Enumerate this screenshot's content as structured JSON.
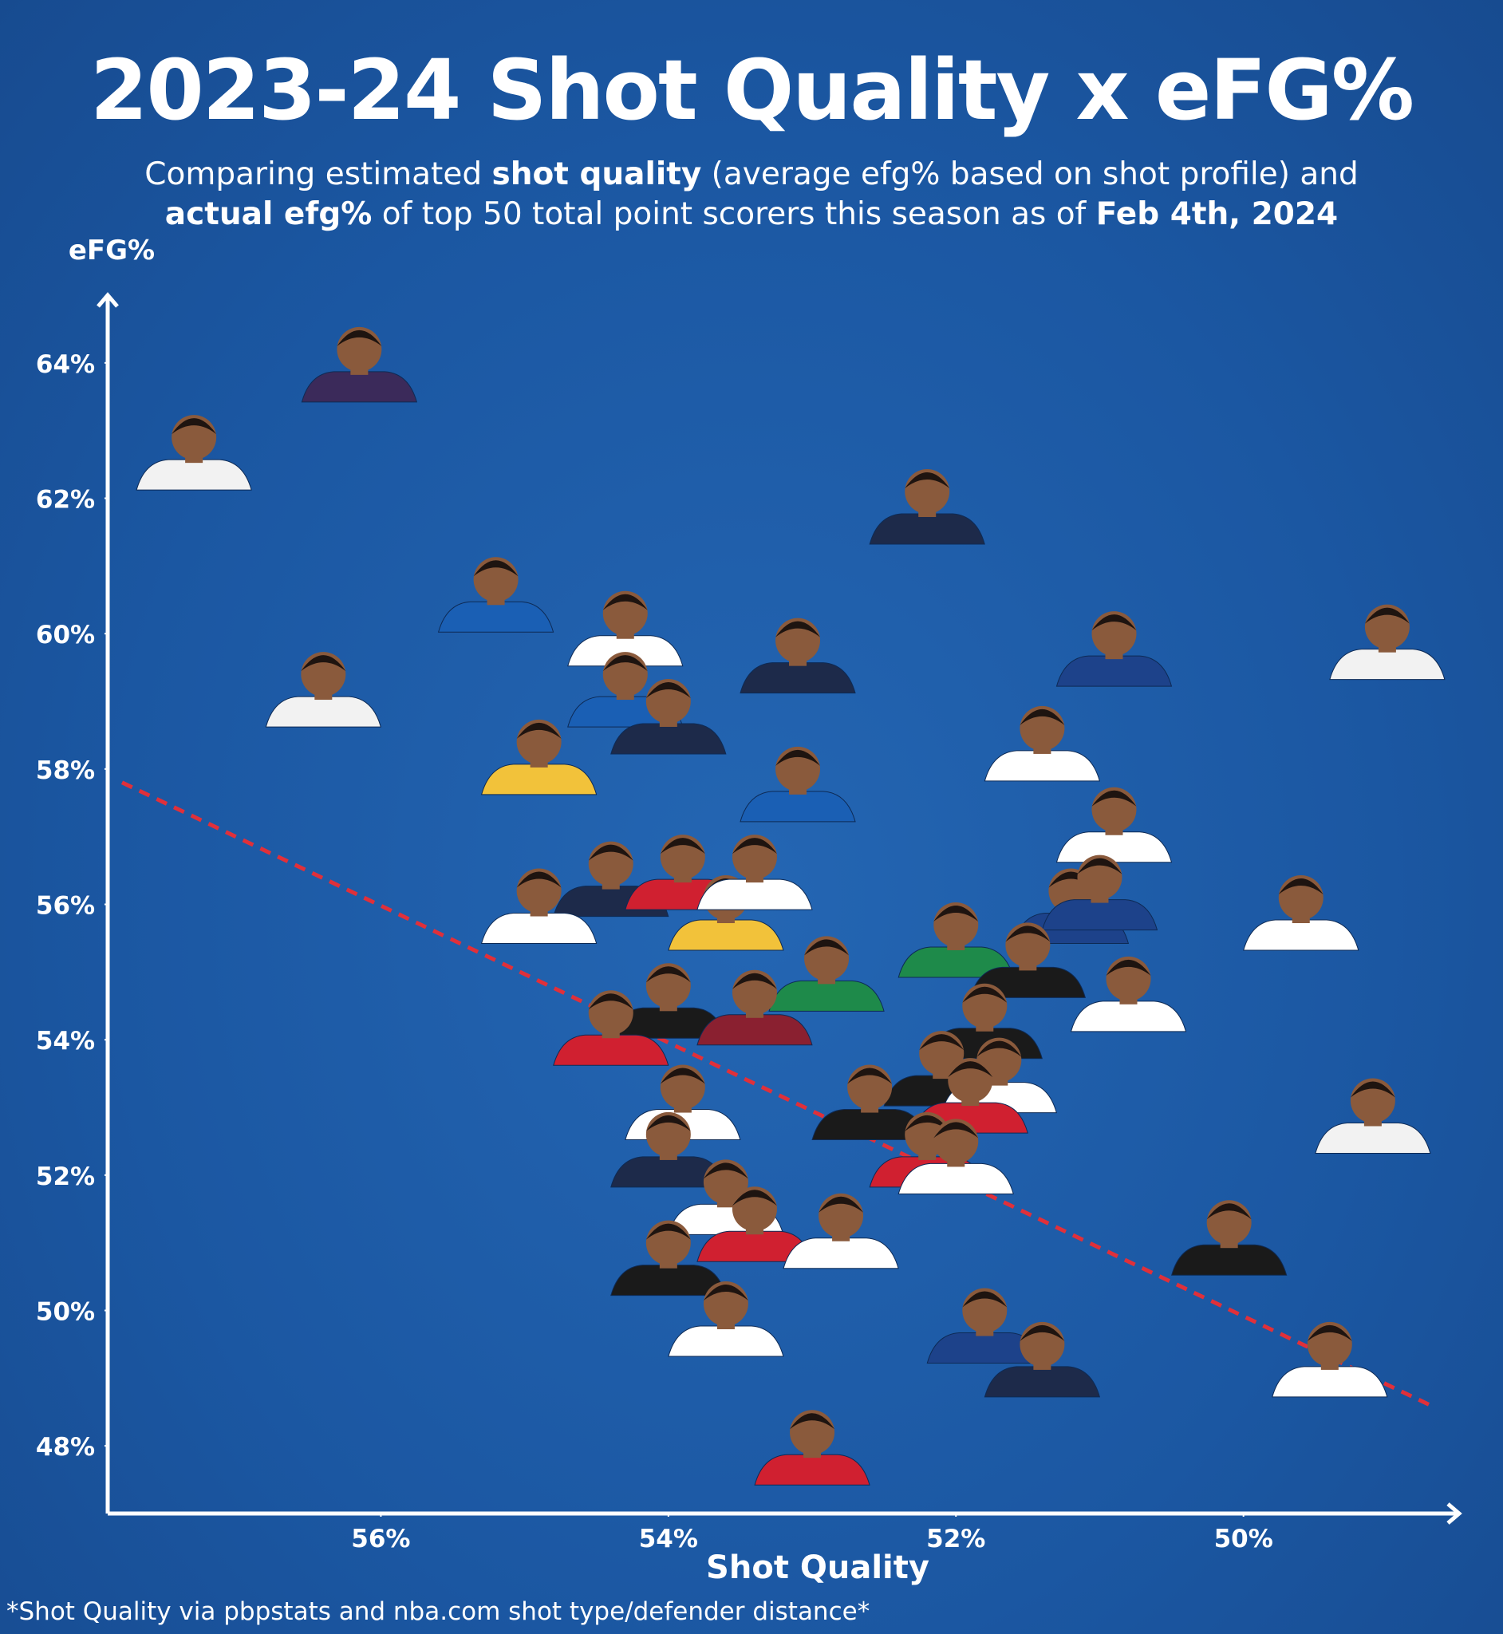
{
  "chart_data": {
    "type": "scatter",
    "title": "2023-24 Shot Quality x eFG%",
    "subtitle": [
      [
        "Comparing estimated ",
        "shot quality",
        " (average efg% based on shot profile) and"
      ],
      [
        "actual efg%",
        " of top 50 total point scorers this season as of ",
        "Feb 4th, 2024"
      ]
    ],
    "x_label": "Shot Quality",
    "y_label": "eFG%",
    "footnote": "*Shot Quality via pbpstats and nba.com shot type/defender distance*",
    "xlim": [
      57.9,
      48.5
    ],
    "ylim": [
      47,
      65
    ],
    "xticks": [
      {
        "value": 56,
        "label": "56%"
      },
      {
        "value": 54,
        "label": "54%"
      },
      {
        "value": 52,
        "label": "52%"
      },
      {
        "value": 50,
        "label": "50%"
      }
    ],
    "yticks": [
      {
        "value": 48,
        "label": "48%"
      },
      {
        "value": 50,
        "label": "50%"
      },
      {
        "value": 52,
        "label": "52%"
      },
      {
        "value": 54,
        "label": "54%"
      },
      {
        "value": 56,
        "label": "56%"
      },
      {
        "value": 58,
        "label": "58%"
      },
      {
        "value": 60,
        "label": "60%"
      },
      {
        "value": 62,
        "label": "62%"
      },
      {
        "value": 64,
        "label": "64%"
      }
    ],
    "x": [
      57.3,
      56.15,
      52.2,
      55.2,
      54.3,
      53.1,
      50.9,
      49.0,
      56.4,
      54.3,
      54.0,
      54.9,
      51.4,
      53.1,
      50.9,
      54.4,
      54.9,
      53.9,
      53.6,
      53.4,
      51.2,
      51.0,
      49.6,
      52.0,
      51.5,
      52.9,
      54.0,
      53.4,
      54.4,
      50.8,
      51.8,
      52.1,
      51.7,
      52.6,
      51.9,
      53.9,
      49.1,
      52.2,
      52.0,
      54.0,
      53.6,
      53.4,
      52.8,
      50.1,
      54.0,
      53.6,
      51.8,
      51.4,
      49.4,
      53.0
    ],
    "y": [
      62.9,
      64.2,
      62.1,
      60.8,
      60.3,
      59.9,
      60.0,
      60.1,
      59.4,
      59.4,
      59.0,
      58.4,
      58.6,
      58.0,
      57.4,
      56.6,
      56.2,
      56.7,
      56.1,
      56.7,
      56.2,
      56.4,
      56.1,
      55.7,
      55.4,
      55.2,
      54.8,
      54.7,
      54.4,
      54.9,
      54.5,
      53.8,
      53.7,
      53.3,
      53.4,
      53.3,
      53.1,
      52.6,
      52.5,
      52.6,
      51.9,
      51.5,
      51.4,
      51.3,
      51.0,
      50.1,
      50.0,
      49.5,
      49.5,
      48.2
    ],
    "colors": [
      "#f2f2f2",
      "#3b2a5a",
      "#1d2a4a",
      "#1a5fb4",
      "#ffffff",
      "#1d2a4a",
      "#1d428a",
      "#f2f2f2",
      "#f2f2f2",
      "#1a5fb4",
      "#1d2a4a",
      "#f2c23a",
      "#ffffff",
      "#1a5fb4",
      "#ffffff",
      "#1d2a4a",
      "#ffffff",
      "#d02030",
      "#f2c23a",
      "#ffffff",
      "#1d428a",
      "#1d428a",
      "#ffffff",
      "#1e8a4a",
      "#1a1a1a",
      "#1e8a4a",
      "#1a1a1a",
      "#8a2030",
      "#d02030",
      "#ffffff",
      "#1a1a1a",
      "#1a1a1a",
      "#ffffff",
      "#1a1a1a",
      "#d02030",
      "#ffffff",
      "#f2f2f2",
      "#d02030",
      "#ffffff",
      "#1d2a4a",
      "#ffffff",
      "#d02030",
      "#ffffff",
      "#1a1a1a",
      "#1a1a1a",
      "#ffffff",
      "#1d428a",
      "#1d2a4a",
      "#ffffff",
      "#d02030"
    ],
    "face_color": "#8a5a3c",
    "trendline": {
      "x": [
        57.8,
        48.7
      ],
      "y": [
        57.8,
        48.6
      ],
      "color": "#e0303a"
    }
  }
}
